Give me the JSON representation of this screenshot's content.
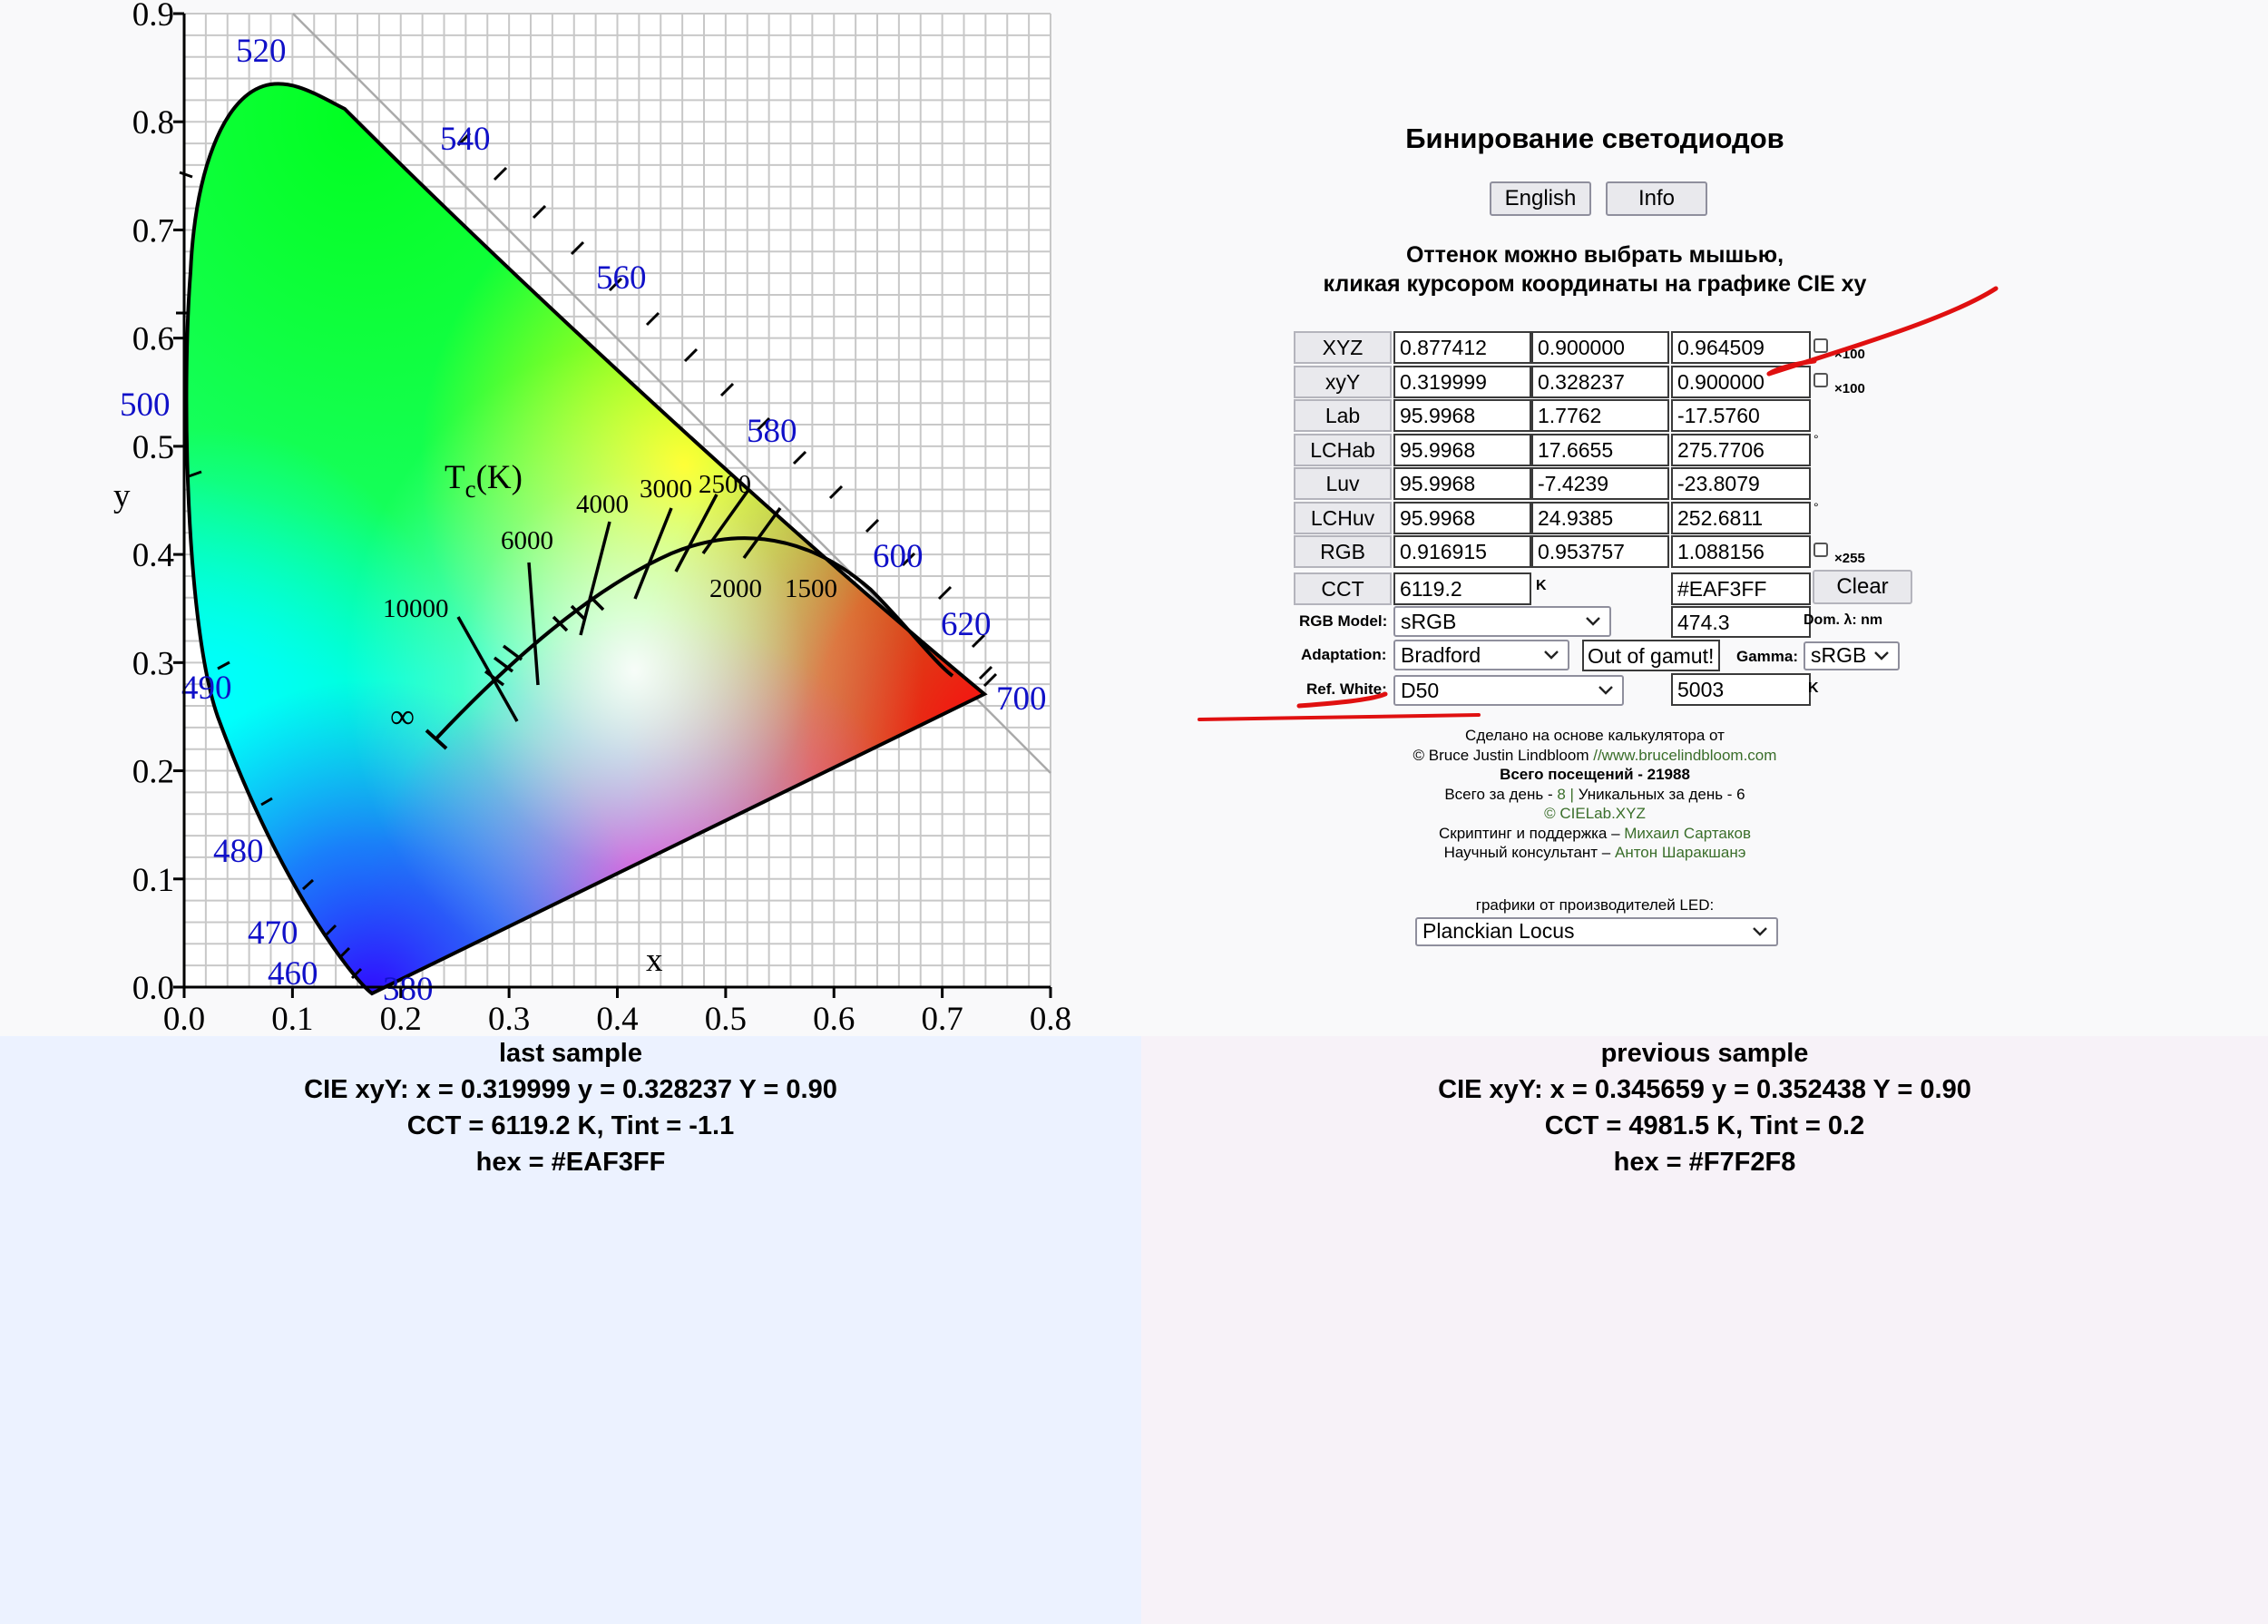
{
  "chart": {
    "x_ticks": [
      "0.0",
      "0.1",
      "0.2",
      "0.3",
      "0.4",
      "0.5",
      "0.6",
      "0.7",
      "0.8"
    ],
    "y_ticks": [
      "0.0",
      "0.1",
      "0.2",
      "0.3",
      "0.4",
      "0.5",
      "0.6",
      "0.7",
      "0.8",
      "0.9"
    ],
    "xlabel": "x",
    "ylabel": "y",
    "locus_title": "T",
    "locus_title_sub": "c",
    "locus_title_unit": "(K)",
    "wavelengths": [
      "380",
      "460",
      "470",
      "480",
      "490",
      "500",
      "520",
      "540",
      "560",
      "580",
      "600",
      "620",
      "700"
    ],
    "cct_labels": [
      "10000",
      "6000",
      "4000",
      "3000",
      "2500",
      "2000",
      "1500",
      "∞"
    ]
  },
  "calc": {
    "title": "Бинирование светодиодов",
    "english_button": "English",
    "info_button": "Info",
    "instruction_line1": "Оттенок можно выбрать мышью,",
    "instruction_line2": "кликая курсором координаты на графике CIE xy",
    "rows": [
      {
        "label": "XYZ",
        "v1": "0.877412",
        "v2": "0.900000",
        "v3": "0.964509",
        "suffix": "×100"
      },
      {
        "label": "xyY",
        "v1": "0.319999",
        "v2": "0.328237",
        "v3": "0.900000",
        "suffix": "×100"
      },
      {
        "label": "Lab",
        "v1": "95.9968",
        "v2": "1.7762",
        "v3": "-17.5760",
        "suffix": ""
      },
      {
        "label": "LCHab",
        "v1": "95.9968",
        "v2": "17.6655",
        "v3": "275.7706",
        "suffix": "°"
      },
      {
        "label": "Luv",
        "v1": "95.9968",
        "v2": "-7.4239",
        "v3": "-23.8079",
        "suffix": ""
      },
      {
        "label": "LCHuv",
        "v1": "95.9968",
        "v2": "24.9385",
        "v3": "252.6811",
        "suffix": "°"
      },
      {
        "label": "RGB",
        "v1": "0.916915",
        "v2": "0.953757",
        "v3": "1.088156",
        "suffix": "×255"
      }
    ],
    "cct_label": "CCT",
    "cct_value": "6119.2",
    "cct_unit": "K",
    "hex_value": "#EAF3FF",
    "clear_button": "Clear",
    "rgb_model_label": "RGB Model:",
    "rgb_model_value": "sRGB",
    "dom_value": "474.3",
    "dom_label": "Dom. λ: nm",
    "adaptation_label": "Adaptation:",
    "adaptation_value": "Bradford",
    "gamut_value": "Out of gamut!",
    "gamma_label": "Gamma:",
    "gamma_value": "sRGB",
    "ref_white_label": "Ref. White:",
    "ref_white_value": "D50",
    "ref_white_temp": "5003",
    "ref_white_unit": "K",
    "credits": {
      "line1": "Сделано на основе калькулятора от",
      "line2_prefix": "© Bruce Justin Lindbloom ",
      "line2_link": "//www.brucelindbloom.com",
      "line3": "Всего посещений - 21988",
      "line4_a": "Всего за день - ",
      "line4_b": "8",
      "line4_c": " | ",
      "line4_d": "Уникальных за день - 6",
      "line5": "© CIELab.XYZ",
      "line6_prefix": "Скриптинг и поддержка – ",
      "line6_link": "Михаил Сартаков",
      "line7_prefix": "Научный консультант – ",
      "line7_link": "Антон Шаракшанэ"
    },
    "led_label": "графики от производителей LED:",
    "led_value": "Planckian Locus"
  },
  "last_sample": {
    "title": "last sample",
    "xyY": "CIE xyY: x = 0.319999 y = 0.328237 Y = 0.90",
    "cct": "CCT = 6119.2 K, Tint = -1.1",
    "hex": "hex = #EAF3FF"
  },
  "previous_sample": {
    "title": "previous sample",
    "xyY": "CIE xyY: x = 0.345659 y = 0.352438 Y = 0.90",
    "cct": "CCT = 4981.5 K, Tint = 0.2",
    "hex": "hex = #F7F2F8"
  },
  "colors": {
    "wavelength_label": "#1010c8",
    "link": "#3a6e2a",
    "annotation_red": "#e01010"
  }
}
